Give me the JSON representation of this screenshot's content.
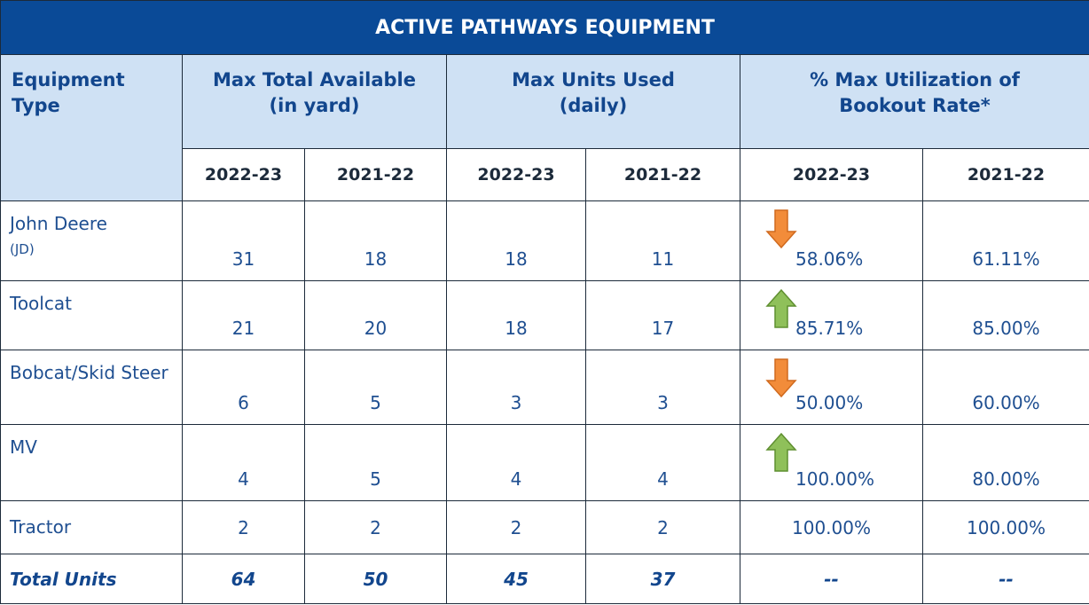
{
  "title": "ACTIVE PATHWAYS EQUIPMENT",
  "header": {
    "equipment_type": [
      "Equipment",
      "Type"
    ],
    "groups": [
      [
        "Max Total Available",
        "(in yard)"
      ],
      [
        "Max Units Used",
        "(daily)"
      ],
      [
        "% Max Utilization of",
        "Bookout Rate*"
      ]
    ],
    "years": [
      "2022-23",
      "2021-22",
      "2022-23",
      "2021-22",
      "2022-23",
      "2021-22"
    ]
  },
  "rows": [
    {
      "label": "John Deere",
      "note": "(JD)",
      "cells": [
        "31",
        "18",
        "18",
        "11",
        "58.06%",
        "61.11%"
      ]
    },
    {
      "label": "Toolcat",
      "cells": [
        "21",
        "20",
        "18",
        "17",
        "85.71%",
        "85.00%"
      ]
    },
    {
      "label": "Bobcat/Skid Steer",
      "cells": [
        "6",
        "5",
        "3",
        "3",
        "50.00%",
        "60.00%"
      ]
    },
    {
      "label": "MV",
      "cells": [
        "4",
        "5",
        "4",
        "4",
        "100.00%",
        "80.00%"
      ]
    },
    {
      "label": "Tractor",
      "cells": [
        "2",
        "2",
        "2",
        "2",
        "100.00%",
        "100.00%"
      ]
    }
  ],
  "total": {
    "label": "Total Units",
    "cells": [
      "64",
      "50",
      "45",
      "37",
      "--",
      "--"
    ]
  }
}
